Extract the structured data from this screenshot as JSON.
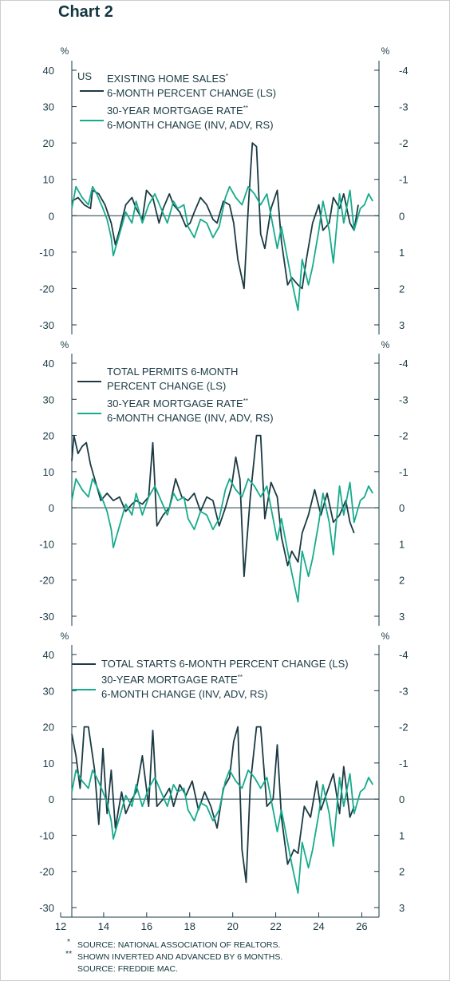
{
  "title": "Chart 2",
  "colors": {
    "dark": "#1b3a44",
    "green": "#16ab8c",
    "axis": "#1b3a44",
    "zero": "#1b3a44"
  },
  "x_tick_labels": [
    "12",
    "14",
    "16",
    "18",
    "20",
    "22",
    "24",
    "26"
  ],
  "footnotes": {
    "f1_mark": "*",
    "f1": "SOURCE: NATIONAL ASSOCIATION OF REALTORS.",
    "f2_mark": "**",
    "f2": "SHOWN INVERTED AND ADVANCED BY 6 MONTHS.",
    "f3": "SOURCE: FREDDIE MAC."
  },
  "chart_data": [
    {
      "type": "line",
      "region": "US",
      "left_unit": "%",
      "right_unit": "%",
      "left_ticks": [
        "40",
        "30",
        "20",
        "10",
        "0",
        "-10",
        "-20",
        "-30"
      ],
      "right_ticks": [
        "-4",
        "-3",
        "-2",
        "-1",
        "0",
        "1",
        "2",
        "3"
      ],
      "ylim_left": [
        -30,
        40
      ],
      "ylim_right_inverted": [
        3,
        -4
      ],
      "xlim": [
        2012,
        2026.8
      ],
      "legend_dark": [
        "EXISTING HOME SALES",
        "6-MONTH PERCENT CHANGE (LS)"
      ],
      "legend_dark_mark": "*",
      "legend_green": [
        "30-YEAR MORTGAGE RATE",
        "6-MONTH CHANGE (INV, ADV, RS)"
      ],
      "legend_green_mark": "**",
      "series": [
        {
          "name": "EXISTING HOME SALES 6-MONTH PERCENT CHANGE (LS)",
          "axis": "left",
          "x": [
            2012.0,
            2012.3,
            2012.6,
            2012.9,
            2013.0,
            2013.3,
            2013.6,
            2013.9,
            2014.1,
            2014.3,
            2014.6,
            2014.9,
            2015.1,
            2015.4,
            2015.6,
            2015.9,
            2016.2,
            2016.4,
            2016.7,
            2016.9,
            2017.2,
            2017.5,
            2017.7,
            2017.9,
            2018.2,
            2018.5,
            2018.8,
            2019.0,
            2019.3,
            2019.6,
            2019.8,
            2020.0,
            2020.3,
            2020.5,
            2020.7,
            2020.9,
            2021.1,
            2021.3,
            2021.6,
            2021.9,
            2022.1,
            2022.4,
            2022.6,
            2022.9,
            2023.1,
            2023.3,
            2023.6,
            2023.9,
            2024.1,
            2024.4,
            2024.6,
            2024.9,
            2025.1,
            2025.4,
            2025.6,
            2025.8
          ],
          "values": [
            4,
            5,
            3,
            2,
            7,
            6,
            3,
            -2,
            -8,
            -4,
            3,
            5,
            2,
            -1,
            7,
            5,
            -2,
            2,
            6,
            3,
            1,
            -3,
            -2,
            1,
            5,
            3,
            -1,
            -2,
            4,
            3,
            -2,
            -12,
            -20,
            2,
            20,
            19,
            -5,
            -9,
            2,
            7,
            -7,
            -19,
            -17,
            -19,
            -20,
            -12,
            -2,
            3,
            -4,
            -2,
            5,
            2,
            6,
            -2,
            -4,
            3
          ]
        },
        {
          "name": "30-YEAR MORTGAGE RATE 6-MONTH CHANGE (INV, ADV, RS)",
          "axis": "right",
          "x": [
            2012.0,
            2012.2,
            2012.5,
            2012.8,
            2013.0,
            2013.2,
            2013.5,
            2013.7,
            2013.9,
            2014.0,
            2014.3,
            2014.6,
            2014.9,
            2015.1,
            2015.4,
            2015.7,
            2016.0,
            2016.3,
            2016.6,
            2016.9,
            2017.1,
            2017.4,
            2017.6,
            2017.9,
            2018.2,
            2018.5,
            2018.8,
            2019.1,
            2019.4,
            2019.6,
            2019.9,
            2020.2,
            2020.5,
            2020.8,
            2021.1,
            2021.4,
            2021.7,
            2021.9,
            2022.1,
            2022.4,
            2022.6,
            2022.9,
            2023.1,
            2023.4,
            2023.6,
            2023.9,
            2024.1,
            2024.4,
            2024.6,
            2024.9,
            2025.1,
            2025.4,
            2025.6,
            2025.9,
            2026.1,
            2026.3,
            2026.5
          ],
          "values": [
            -0.2,
            -0.8,
            -0.5,
            -0.3,
            -0.8,
            -0.6,
            -0.2,
            0.1,
            0.6,
            1.1,
            0.5,
            -0.1,
            0.2,
            -0.4,
            0.2,
            -0.3,
            -0.6,
            -0.2,
            0.2,
            -0.4,
            -0.2,
            -0.3,
            0.3,
            0.6,
            0.1,
            0.2,
            0.6,
            0.3,
            -0.5,
            -0.8,
            -0.5,
            -0.3,
            -0.8,
            -0.6,
            -0.3,
            -0.6,
            0.3,
            0.9,
            0.3,
            1.2,
            1.8,
            2.6,
            1.2,
            1.9,
            1.4,
            0.4,
            -0.4,
            0.4,
            1.3,
            -0.6,
            0.2,
            -0.7,
            0.4,
            -0.2,
            -0.3,
            -0.6,
            -0.4
          ]
        }
      ]
    },
    {
      "type": "line",
      "left_unit": "%",
      "right_unit": "%",
      "left_ticks": [
        "40",
        "30",
        "20",
        "10",
        "0",
        "-10",
        "-20",
        "-30"
      ],
      "right_ticks": [
        "-4",
        "-3",
        "-2",
        "-1",
        "0",
        "1",
        "2",
        "3"
      ],
      "ylim_left": [
        -30,
        40
      ],
      "ylim_right_inverted": [
        3,
        -4
      ],
      "xlim": [
        2012,
        2026.8
      ],
      "legend_dark": [
        "TOTAL PERMITS 6-MONTH",
        "PERCENT CHANGE (LS)"
      ],
      "legend_dark_mark": "",
      "legend_green": [
        "30-YEAR MORTGAGE RATE",
        "6-MONTH CHANGE (INV, ADV, RS)"
      ],
      "legend_green_mark": "**",
      "series": [
        {
          "name": "TOTAL PERMITS 6-MONTH PERCENT CHANGE (LS)",
          "axis": "left",
          "x": [
            2012.0,
            2012.1,
            2012.3,
            2012.5,
            2012.7,
            2012.9,
            2013.1,
            2013.4,
            2013.7,
            2014.0,
            2014.3,
            2014.6,
            2014.9,
            2015.1,
            2015.4,
            2015.7,
            2015.9,
            2016.1,
            2016.4,
            2016.7,
            2017.0,
            2017.3,
            2017.6,
            2017.9,
            2018.2,
            2018.5,
            2018.8,
            2019.1,
            2019.4,
            2019.7,
            2019.9,
            2020.1,
            2020.3,
            2020.6,
            2020.9,
            2021.1,
            2021.3,
            2021.6,
            2021.9,
            2022.1,
            2022.4,
            2022.6,
            2022.9,
            2023.1,
            2023.4,
            2023.7,
            2024.0,
            2024.3,
            2024.6,
            2024.9,
            2025.2,
            2025.4,
            2025.6
          ],
          "values": [
            13,
            20,
            15,
            17,
            18,
            12,
            8,
            2,
            4,
            2,
            3,
            -1,
            1,
            2,
            1,
            3,
            18,
            -5,
            -2,
            0,
            8,
            3,
            2,
            4,
            -1,
            3,
            2,
            -5,
            0,
            6,
            14,
            8,
            -19,
            3,
            20,
            20,
            -3,
            7,
            3,
            -8,
            -16,
            -12,
            -15,
            -7,
            -2,
            5,
            -2,
            4,
            -4,
            -2,
            2,
            -4,
            -7
          ]
        },
        {
          "name": "30-YEAR MORTGAGE RATE 6-MONTH CHANGE (INV, ADV, RS)",
          "axis": "right",
          "x": [
            2012.0,
            2012.2,
            2012.5,
            2012.8,
            2013.0,
            2013.2,
            2013.5,
            2013.7,
            2013.9,
            2014.0,
            2014.3,
            2014.6,
            2014.9,
            2015.1,
            2015.4,
            2015.7,
            2016.0,
            2016.3,
            2016.6,
            2016.9,
            2017.1,
            2017.4,
            2017.6,
            2017.9,
            2018.2,
            2018.5,
            2018.8,
            2019.1,
            2019.4,
            2019.6,
            2019.9,
            2020.2,
            2020.5,
            2020.8,
            2021.1,
            2021.4,
            2021.7,
            2021.9,
            2022.1,
            2022.4,
            2022.6,
            2022.9,
            2023.1,
            2023.4,
            2023.6,
            2023.9,
            2024.1,
            2024.4,
            2024.6,
            2024.9,
            2025.1,
            2025.4,
            2025.6,
            2025.9,
            2026.1,
            2026.3,
            2026.5
          ],
          "values": [
            -0.2,
            -0.8,
            -0.5,
            -0.3,
            -0.8,
            -0.6,
            -0.2,
            0.1,
            0.6,
            1.1,
            0.5,
            -0.1,
            0.2,
            -0.4,
            0.2,
            -0.3,
            -0.6,
            -0.2,
            0.2,
            -0.4,
            -0.2,
            -0.3,
            0.3,
            0.6,
            0.1,
            0.2,
            0.6,
            0.3,
            -0.5,
            -0.8,
            -0.5,
            -0.3,
            -0.8,
            -0.6,
            -0.3,
            -0.6,
            0.3,
            0.9,
            0.3,
            1.2,
            1.8,
            2.6,
            1.2,
            1.9,
            1.4,
            0.4,
            -0.4,
            0.4,
            1.3,
            -0.6,
            0.2,
            -0.7,
            0.4,
            -0.2,
            -0.3,
            -0.6,
            -0.4
          ]
        }
      ]
    },
    {
      "type": "line",
      "left_unit": "%",
      "right_unit": "%",
      "left_ticks": [
        "40",
        "30",
        "20",
        "10",
        "0",
        "-10",
        "-20",
        "-30"
      ],
      "right_ticks": [
        "-4",
        "-3",
        "-2",
        "-1",
        "0",
        "1",
        "2",
        "3"
      ],
      "ylim_left": [
        -30,
        40
      ],
      "ylim_right_inverted": [
        3,
        -4
      ],
      "xlim": [
        2012,
        2026.8
      ],
      "legend_dark": [
        "TOTAL STARTS 6-MONTH PERCENT CHANGE (LS)"
      ],
      "legend_dark_mark": "",
      "legend_green": [
        "30-YEAR MORTGAGE RATE",
        "6-MONTH CHANGE (INV, ADV, RS)"
      ],
      "legend_green_mark": "**",
      "series": [
        {
          "name": "TOTAL STARTS 6-MONTH PERCENT CHANGE (LS)",
          "axis": "left",
          "x": [
            2012.0,
            2012.2,
            2012.4,
            2012.6,
            2012.8,
            2013.1,
            2013.3,
            2013.5,
            2013.7,
            2013.9,
            2014.1,
            2014.4,
            2014.6,
            2014.9,
            2015.1,
            2015.4,
            2015.7,
            2015.9,
            2016.1,
            2016.4,
            2016.7,
            2016.9,
            2017.2,
            2017.5,
            2017.8,
            2018.1,
            2018.4,
            2018.7,
            2019.0,
            2019.3,
            2019.6,
            2019.8,
            2020.0,
            2020.2,
            2020.4,
            2020.6,
            2020.9,
            2021.1,
            2021.4,
            2021.7,
            2021.9,
            2022.1,
            2022.4,
            2022.7,
            2022.9,
            2023.2,
            2023.5,
            2023.8,
            2024.0,
            2024.3,
            2024.6,
            2024.9,
            2025.1,
            2025.4,
            2025.6
          ],
          "values": [
            18,
            12,
            3,
            20,
            20,
            8,
            -7,
            14,
            -4,
            8,
            -8,
            2,
            -4,
            0,
            2,
            12,
            -2,
            19,
            -2,
            0,
            3,
            -2,
            4,
            1,
            5,
            -3,
            2,
            -2,
            -8,
            3,
            6,
            16,
            20,
            -14,
            -23,
            4,
            20,
            20,
            -2,
            0,
            15,
            -5,
            -18,
            -14,
            -15,
            -2,
            -5,
            5,
            -3,
            2,
            7,
            -4,
            9,
            -5,
            -2
          ]
        },
        {
          "name": "30-YEAR MORTGAGE RATE 6-MONTH CHANGE (INV, ADV, RS)",
          "axis": "right",
          "x": [
            2012.0,
            2012.2,
            2012.5,
            2012.8,
            2013.0,
            2013.2,
            2013.5,
            2013.7,
            2013.9,
            2014.0,
            2014.3,
            2014.6,
            2014.9,
            2015.1,
            2015.4,
            2015.7,
            2016.0,
            2016.3,
            2016.6,
            2016.9,
            2017.1,
            2017.4,
            2017.6,
            2017.9,
            2018.2,
            2018.5,
            2018.8,
            2019.1,
            2019.4,
            2019.6,
            2019.9,
            2020.2,
            2020.5,
            2020.8,
            2021.1,
            2021.4,
            2021.7,
            2021.9,
            2022.1,
            2022.4,
            2022.6,
            2022.9,
            2023.1,
            2023.4,
            2023.6,
            2023.9,
            2024.1,
            2024.4,
            2024.6,
            2024.9,
            2025.1,
            2025.4,
            2025.6,
            2025.9,
            2026.1,
            2026.3,
            2026.5
          ],
          "values": [
            -0.2,
            -0.8,
            -0.5,
            -0.3,
            -0.8,
            -0.6,
            -0.2,
            0.1,
            0.6,
            1.1,
            0.5,
            -0.1,
            0.2,
            -0.4,
            0.2,
            -0.3,
            -0.6,
            -0.2,
            0.2,
            -0.4,
            -0.2,
            -0.3,
            0.3,
            0.6,
            0.1,
            0.2,
            0.6,
            0.3,
            -0.5,
            -0.8,
            -0.5,
            -0.3,
            -0.8,
            -0.6,
            -0.3,
            -0.6,
            0.3,
            0.9,
            0.3,
            1.2,
            1.8,
            2.6,
            1.2,
            1.9,
            1.4,
            0.4,
            -0.4,
            0.4,
            1.3,
            -0.6,
            0.2,
            -0.7,
            0.4,
            -0.2,
            -0.3,
            -0.6,
            -0.4
          ]
        }
      ]
    }
  ]
}
